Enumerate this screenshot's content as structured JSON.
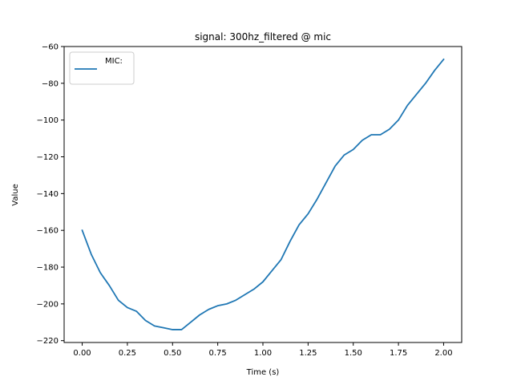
{
  "chart_data": {
    "type": "line",
    "title": "signal: 300hz_filtered @ mic",
    "xlabel": "Time (s)",
    "ylabel": "Value",
    "xlim": [
      -0.1,
      2.1
    ],
    "ylim": [
      -221,
      -60
    ],
    "xticks": [
      0.0,
      0.25,
      0.5,
      0.75,
      1.0,
      1.25,
      1.5,
      1.75,
      2.0
    ],
    "xtick_labels": [
      "0.00",
      "0.25",
      "0.50",
      "0.75",
      "1.00",
      "1.25",
      "1.50",
      "1.75",
      "2.00"
    ],
    "yticks": [
      -220,
      -200,
      -180,
      -160,
      -140,
      -120,
      -100,
      -80,
      -60
    ],
    "ytick_labels": [
      "−220",
      "−200",
      "−180",
      "−160",
      "−140",
      "−120",
      "−100",
      "−80",
      "−60"
    ],
    "grid": false,
    "legend_position": "top-left",
    "series_color": "#1f77b4",
    "series": [
      {
        "name": "MIC:",
        "x": [
          0.0,
          0.05,
          0.1,
          0.15,
          0.2,
          0.25,
          0.3,
          0.35,
          0.4,
          0.45,
          0.5,
          0.55,
          0.6,
          0.65,
          0.7,
          0.75,
          0.8,
          0.85,
          0.9,
          0.95,
          1.0,
          1.05,
          1.1,
          1.15,
          1.2,
          1.25,
          1.3,
          1.35,
          1.4,
          1.45,
          1.5,
          1.55,
          1.6,
          1.65,
          1.7,
          1.75,
          1.8,
          1.85,
          1.9,
          1.95,
          2.0
        ],
        "y": [
          -160,
          -173,
          -183,
          -190,
          -198,
          -202,
          -204,
          -209,
          -212,
          -213,
          -214,
          -214,
          -210,
          -206,
          -203,
          -201,
          -200,
          -198,
          -195,
          -192,
          -188,
          -182,
          -176,
          -166,
          -157,
          -151,
          -143,
          -134,
          -125,
          -119,
          -116,
          -111,
          -108,
          -108,
          -105,
          -100,
          -92,
          -86,
          -80,
          -73,
          -67
        ]
      }
    ]
  }
}
